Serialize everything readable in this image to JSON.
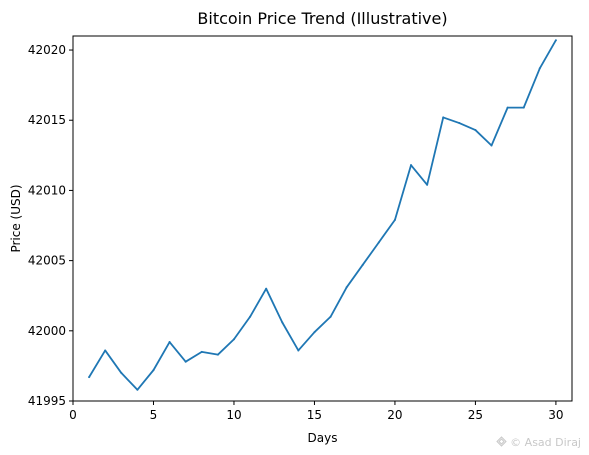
{
  "chart_data": {
    "type": "line",
    "title": "Bitcoin Price Trend (Illustrative)",
    "xlabel": "Days",
    "ylabel": "Price (USD)",
    "xlim": [
      0,
      31
    ],
    "ylim": [
      41995,
      42021
    ],
    "x_ticks": [
      0,
      5,
      10,
      15,
      20,
      25,
      30
    ],
    "y_ticks": [
      41995,
      42000,
      42005,
      42010,
      42015,
      42020
    ],
    "grid": false,
    "series": [
      {
        "color": "#1f77b4",
        "x": [
          1,
          2,
          3,
          4,
          5,
          6,
          7,
          8,
          9,
          10,
          11,
          12,
          13,
          14,
          15,
          16,
          17,
          18,
          19,
          20,
          21,
          22,
          23,
          24,
          25,
          26,
          27,
          28,
          29,
          30
        ],
        "y": [
          41996.7,
          41998.6,
          41997.0,
          41995.8,
          41997.2,
          41999.2,
          41997.8,
          41998.5,
          41998.3,
          41999.4,
          42001.0,
          42003.0,
          42000.6,
          41998.6,
          41999.9,
          42001.0,
          42003.1,
          42004.7,
          42006.3,
          42007.9,
          42011.8,
          42010.4,
          42015.2,
          42014.8,
          42014.3,
          42013.2,
          42015.9,
          42015.9,
          42018.7,
          42020.7
        ]
      }
    ]
  },
  "watermark": {
    "text": "© Asad Diraj",
    "icon": "watermark-logo-icon"
  }
}
